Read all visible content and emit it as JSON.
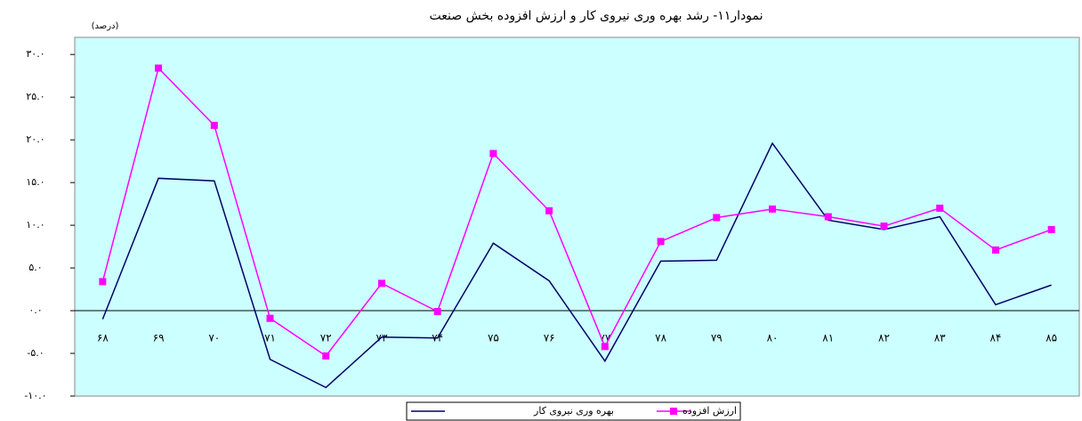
{
  "chart_data": {
    "type": "line",
    "title": "نمودار۱۱- رشد بهره وری نیروی کار و ارزش افزوده بخش صنعت",
    "y_label": "(درصد)",
    "categories": [
      "۶۸",
      "۶۹",
      "۷۰",
      "۷۱",
      "۷۲",
      "۷۳",
      "۷۴",
      "۷۵",
      "۷۶",
      "۷۷",
      "۷۸",
      "۷۹",
      "۸۰",
      "۸۱",
      "۸۲",
      "۸۳",
      "۸۴",
      "۸۵"
    ],
    "series": [
      {
        "name": "بهره وری نیروی کار",
        "color": "#000066",
        "marker": false,
        "values": [
          -1.0,
          15.5,
          15.2,
          -5.7,
          -9.0,
          -3.1,
          -3.2,
          7.9,
          3.5,
          -5.9,
          5.8,
          5.9,
          19.6,
          10.6,
          9.5,
          11.0,
          0.7,
          3.0
        ]
      },
      {
        "name": "ارزش افزوده",
        "color": "#ff00ff",
        "marker": true,
        "values": [
          3.4,
          28.4,
          21.7,
          -0.9,
          -5.3,
          3.2,
          -0.1,
          18.4,
          11.7,
          -4.2,
          8.1,
          10.9,
          11.9,
          11.0,
          9.9,
          12.0,
          7.1,
          9.5
        ]
      }
    ],
    "ylim": [
      -10,
      32
    ],
    "yticks": [
      {
        "value": 30,
        "label": "۳۰.۰"
      },
      {
        "value": 25,
        "label": "۲۵.۰"
      },
      {
        "value": 20,
        "label": "۲۰.۰"
      },
      {
        "value": 15,
        "label": "۱۵.۰"
      },
      {
        "value": 10,
        "label": "۱۰.۰"
      },
      {
        "value": 5,
        "label": "۵.۰"
      },
      {
        "value": 0,
        "label": "۰.۰"
      },
      {
        "value": -5,
        "label": "-۵.۰"
      },
      {
        "value": -10,
        "label": "-۱۰.۰"
      }
    ],
    "grid": false,
    "legend": "bottom",
    "plot_background": "#ccffff"
  }
}
